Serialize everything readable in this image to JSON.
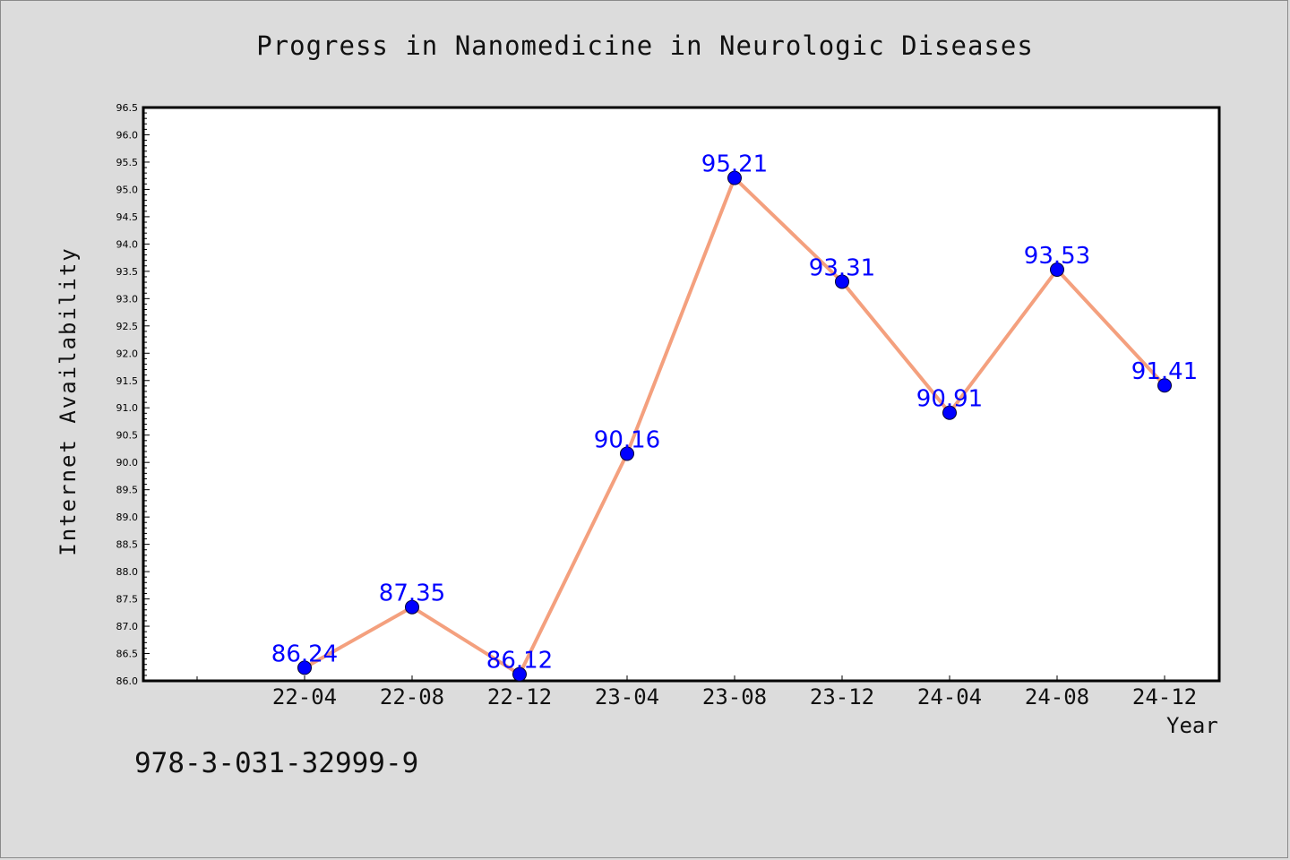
{
  "chart_data": {
    "type": "line",
    "title": "Progress in Nanomedicine in Neurologic Diseases",
    "xlabel": "Year",
    "ylabel": "Internet Availability",
    "categories": [
      "22-04",
      "22-08",
      "22-12",
      "23-04",
      "23-08",
      "23-12",
      "24-04",
      "24-08",
      "24-12"
    ],
    "series": [
      {
        "values": [
          86.24,
          87.35,
          86.12,
          90.16,
          95.21,
          93.31,
          90.91,
          93.53,
          91.41
        ]
      }
    ],
    "ylim": [
      86.0,
      96.5
    ],
    "yticks": [
      "86.0",
      "86.5",
      "87.0",
      "87.5",
      "88.0",
      "88.5",
      "89.0",
      "89.5",
      "90.0",
      "90.5",
      "91.0",
      "91.5",
      "92.0",
      "92.5",
      "93.0",
      "93.5",
      "94.0",
      "94.5",
      "95.0",
      "95.5",
      "96.0",
      "96.5"
    ],
    "line_color": "#f4a07e",
    "marker_color": "#0000ff",
    "label_color": "#0000ff",
    "grid": false,
    "legend": "none"
  },
  "footnote": "978-3-031-32999-9"
}
